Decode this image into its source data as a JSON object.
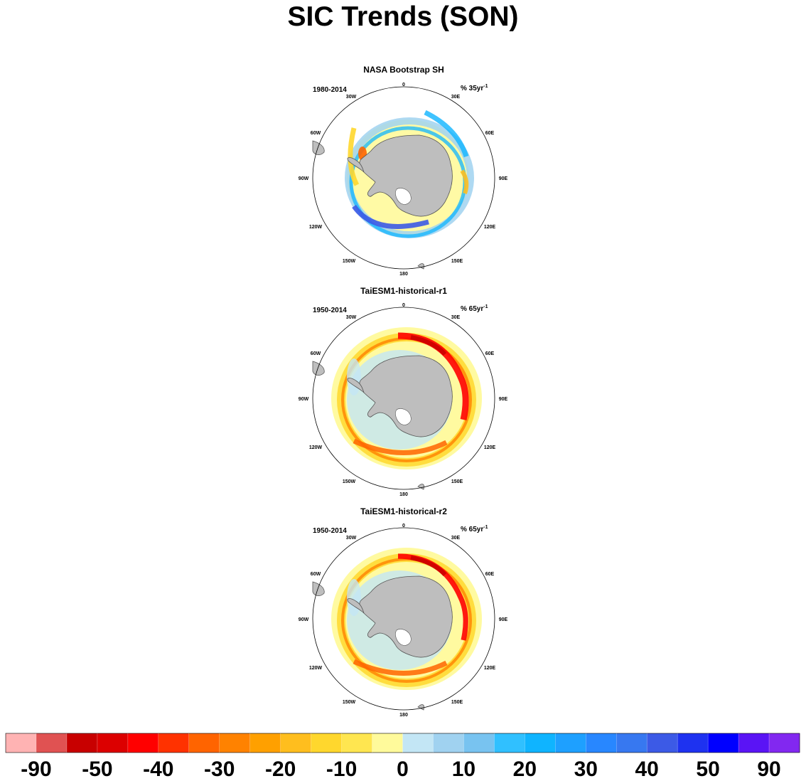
{
  "title": "SIC Trends (SON)",
  "chart_data": [
    {
      "type": "heatmap",
      "title": "NASA Bootstrap SH",
      "period": "1980-2014",
      "units_label": "% 35yr",
      "units_exponent": "-1",
      "projection": "south-polar-stereographic",
      "longitude_labels": [
        "0",
        "30E",
        "60E",
        "90E",
        "120E",
        "150E",
        "180",
        "150W",
        "120W",
        "90W",
        "60W",
        "30W"
      ],
      "pattern": "weak positive trends (blue) ringing most of the ice edge, strongest in the Ross/Amundsen sector; weak negative trends (yellow-orange) in the Weddell and Bellingshausen sectors"
    },
    {
      "type": "heatmap",
      "title": "TaiESM1-historical-r1",
      "period": "1950-2014",
      "units_label": "% 65yr",
      "units_exponent": "-1",
      "projection": "south-polar-stereographic",
      "longitude_labels": [
        "0",
        "30E",
        "60E",
        "90E",
        "120E",
        "150E",
        "180",
        "150W",
        "120W",
        "90W",
        "60W",
        "30W"
      ],
      "pattern": "strong negative trends (red, down to about -50) in a ring along the ice edge, strongest in the Weddell sector and near 90E"
    },
    {
      "type": "heatmap",
      "title": "TaiESM1-historical-r2",
      "period": "1950-2014",
      "units_label": "% 65yr",
      "units_exponent": "-1",
      "projection": "south-polar-stereographic",
      "longitude_labels": [
        "0",
        "30E",
        "60E",
        "90E",
        "120E",
        "150E",
        "180",
        "150W",
        "120W",
        "90W",
        "60W",
        "30W"
      ],
      "pattern": "negative trends (orange-red) ringing the ice edge, strongest in the Weddell sector, with small positive patches near the coast"
    }
  ],
  "colorbar": {
    "labels": [
      "-90",
      "-50",
      "-40",
      "-30",
      "-20",
      "-10",
      "0",
      "10",
      "20",
      "30",
      "40",
      "50",
      "90"
    ],
    "colors": [
      "#ffb3b3",
      "#e05252",
      "#c80000",
      "#dc0000",
      "#ff0000",
      "#ff3200",
      "#ff6400",
      "#ff8200",
      "#ffa000",
      "#ffbe1e",
      "#ffd72d",
      "#ffe650",
      "#fffa9b",
      "#c3e6f5",
      "#a0d2f0",
      "#78c3f0",
      "#30c0ff",
      "#0fb4ff",
      "#1ea0ff",
      "#2887ff",
      "#3778f0",
      "#3c5ae6",
      "#1e32f0",
      "#0000ff",
      "#5a14f5",
      "#8228f0"
    ]
  },
  "colors": {
    "land": "#bebebe",
    "coast": "#555555",
    "ocean": "#ffffff"
  }
}
